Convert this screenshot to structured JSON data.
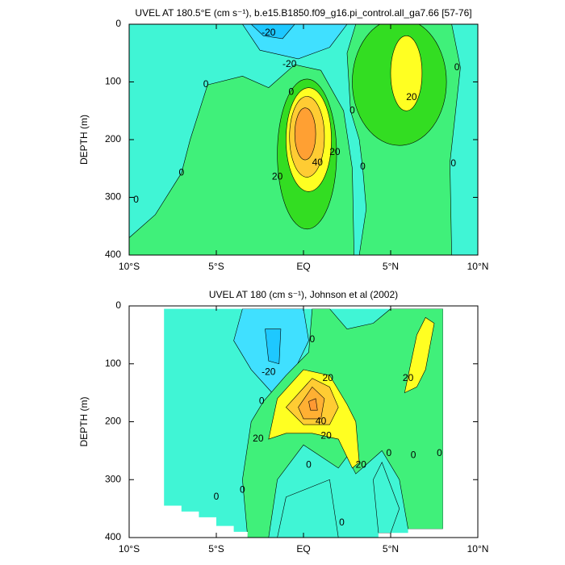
{
  "chart_data": [
    {
      "type": "contour",
      "title": "UVEL AT 180.5°E (cm s⁻¹), b.e15.B1850.f09_g16.pi_control.all_ga7.66 [57-76]",
      "ylabel": "DEPTH (m)",
      "xlim": [
        -10,
        10
      ],
      "ylim": [
        0,
        400
      ],
      "y_inverted": true,
      "xticks": [
        {
          "value": -10,
          "label": "10°S"
        },
        {
          "value": -5,
          "label": "5°S"
        },
        {
          "value": 0,
          "label": "EQ"
        },
        {
          "value": 5,
          "label": "5°N"
        },
        {
          "value": 10,
          "label": "10°N"
        }
      ],
      "yticks": [
        0,
        100,
        200,
        300,
        400
      ],
      "background": {
        "level": 0,
        "color": "#40f07a"
      },
      "regions": [
        {
          "level": -10,
          "color": "#40f5d5",
          "points": [
            [
              -10,
              0
            ],
            [
              3,
              0
            ],
            [
              2.5,
              50
            ],
            [
              2.7,
              150
            ],
            [
              3.2,
              200
            ],
            [
              3.4,
              250
            ],
            [
              3.6,
              320
            ],
            [
              3.2,
              400
            ],
            [
              2.9,
              400
            ],
            [
              2.8,
              250
            ],
            [
              2.3,
              150
            ],
            [
              1,
              80
            ],
            [
              -0.5,
              70
            ],
            [
              -2,
              110
            ],
            [
              -3.5,
              90
            ],
            [
              -5.5,
              105
            ],
            [
              -6.5,
              200
            ],
            [
              -7,
              258
            ],
            [
              -8.5,
              330
            ],
            [
              -10,
              370
            ]
          ]
        },
        {
          "level": -10,
          "color": "#40f5d5",
          "points": [
            [
              8.5,
              0
            ],
            [
              10,
              0
            ],
            [
              10,
              400
            ],
            [
              8.5,
              400
            ],
            [
              8.4,
              240
            ],
            [
              9,
              75
            ]
          ]
        },
        {
          "level": -20,
          "color": "#40e0ff",
          "points": [
            [
              -3.5,
              0
            ],
            [
              2.5,
              0
            ],
            [
              1.5,
              40
            ],
            [
              -0.3,
              60
            ],
            [
              -2.5,
              45
            ]
          ]
        },
        {
          "level": -30,
          "color": "#1ec8ff",
          "points": [
            [
              -3,
              0
            ],
            [
              -0.5,
              0
            ],
            [
              -1.2,
              25
            ],
            [
              -2.3,
              20
            ]
          ]
        },
        {
          "level": 10,
          "color": "#33dd22",
          "center": [
            0.2,
            225
          ],
          "radius": [
            1.7,
            130
          ]
        },
        {
          "level": 20,
          "color": "#ffff22",
          "center": [
            0.3,
            200
          ],
          "radius": [
            1.3,
            90
          ]
        },
        {
          "level": 30,
          "color": "#ffcc33",
          "center": [
            0.2,
            195
          ],
          "radius": [
            1,
            70
          ]
        },
        {
          "level": 40,
          "color": "#ffa033",
          "center": [
            0.1,
            190
          ],
          "radius": [
            0.6,
            45
          ]
        },
        {
          "level": 10,
          "color": "#33dd22",
          "center": [
            5.5,
            100
          ],
          "radius": [
            2.7,
            110
          ]
        },
        {
          "level": 20,
          "color": "#ffff22",
          "center": [
            5.9,
            85
          ],
          "radius": [
            0.9,
            65
          ]
        }
      ],
      "contour_labels": [
        {
          "level": -20,
          "x": -2,
          "y": 15
        },
        {
          "level": -20,
          "x": -0.8,
          "y": 70
        },
        {
          "level": 0,
          "x": -5.6,
          "y": 105
        },
        {
          "level": 0,
          "x": -9.6,
          "y": 305
        },
        {
          "level": 0,
          "x": -7,
          "y": 258
        },
        {
          "level": 0,
          "x": -0.7,
          "y": 118
        },
        {
          "level": 0,
          "x": 2.8,
          "y": 150
        },
        {
          "level": 0,
          "x": 3.4,
          "y": 247
        },
        {
          "level": 0,
          "x": 8.8,
          "y": 75
        },
        {
          "level": 0,
          "x": 8.6,
          "y": 242
        },
        {
          "level": 20,
          "x": 1.8,
          "y": 222
        },
        {
          "level": 40,
          "x": 0.8,
          "y": 240
        },
        {
          "level": 20,
          "x": -1.5,
          "y": 265
        },
        {
          "level": 20,
          "x": 6.2,
          "y": 127
        }
      ]
    },
    {
      "type": "contour",
      "title": "UVEL AT 180 (cm s⁻¹), Johnson et al (2002)",
      "ylabel": "DEPTH (m)",
      "xlim": [
        -10,
        10
      ],
      "ylim": [
        0,
        400
      ],
      "y_inverted": true,
      "xticks": [
        {
          "value": -10,
          "label": "10°S"
        },
        {
          "value": -5,
          "label": "5°S"
        },
        {
          "value": 0,
          "label": "EQ"
        },
        {
          "value": 5,
          "label": "5°N"
        },
        {
          "value": 10,
          "label": "10°N"
        }
      ],
      "yticks": [
        0,
        100,
        200,
        300,
        400
      ],
      "extent": [
        [
          -8,
          5
        ],
        [
          8,
          5
        ],
        [
          8,
          385
        ],
        [
          6,
          385
        ],
        [
          6,
          392
        ],
        [
          4.3,
          392
        ],
        [
          4.3,
          400
        ],
        [
          -3.2,
          400
        ],
        [
          -3.2,
          390
        ],
        [
          -4,
          390
        ],
        [
          -4,
          380
        ],
        [
          -5,
          380
        ],
        [
          -5,
          365
        ],
        [
          -6,
          365
        ],
        [
          -6,
          355
        ],
        [
          -7,
          355
        ],
        [
          -7,
          345
        ],
        [
          -8,
          345
        ]
      ],
      "background": {
        "level": -10,
        "color": "#40f5d5"
      },
      "regions": [
        {
          "level": -20,
          "color": "#40e0ff",
          "points": [
            [
              -3.5,
              5
            ],
            [
              0,
              5
            ],
            [
              0.3,
              60
            ],
            [
              -0.5,
              110
            ],
            [
              -1.8,
              150
            ],
            [
              -3,
              110
            ],
            [
              -4,
              60
            ]
          ]
        },
        {
          "level": -30,
          "color": "#1ec8ff",
          "points": [
            [
              -2.2,
              40
            ],
            [
              -1.3,
              40
            ],
            [
              -1.4,
              100
            ],
            [
              -2,
              95
            ]
          ]
        },
        {
          "level": 10,
          "color": "#40f07a",
          "points": [
            [
              0.5,
              5
            ],
            [
              1.5,
              5
            ],
            [
              2.5,
              40
            ],
            [
              4,
              30
            ],
            [
              5,
              5
            ],
            [
              8,
              5
            ],
            [
              8,
              385
            ],
            [
              6,
              385
            ],
            [
              5.5,
              300
            ],
            [
              4.5,
              250
            ],
            [
              3,
              290
            ],
            [
              2.5,
              260
            ],
            [
              2,
              280
            ],
            [
              0,
              240
            ],
            [
              -1.5,
              300
            ],
            [
              -2,
              400
            ],
            [
              -3.2,
              400
            ],
            [
              -3.5,
              300
            ],
            [
              -3,
              200
            ],
            [
              -2.3,
              165
            ],
            [
              -1,
              120
            ],
            [
              0.3,
              80
            ]
          ]
        },
        {
          "level": -10,
          "color": "#40f5d5",
          "points": [
            [
              -1,
              330
            ],
            [
              1.5,
              300
            ],
            [
              2,
              400
            ],
            [
              -1.5,
              400
            ]
          ]
        },
        {
          "level": -10,
          "color": "#40f5d5",
          "points": [
            [
              4.5,
              270
            ],
            [
              5.5,
              350
            ],
            [
              5,
              392
            ],
            [
              4.3,
              392
            ],
            [
              4,
              300
            ]
          ]
        },
        {
          "level": 20,
          "color": "#ffff22",
          "points": [
            [
              -1.5,
              160
            ],
            [
              0,
              110
            ],
            [
              1.5,
              120
            ],
            [
              2.5,
              170
            ],
            [
              3,
              200
            ],
            [
              3.2,
              270
            ],
            [
              2.8,
              280
            ],
            [
              2,
              230
            ],
            [
              0.5,
              220
            ],
            [
              -1,
              220
            ],
            [
              -2,
              230
            ]
          ]
        },
        {
          "level": 20,
          "color": "#ffff22",
          "points": [
            [
              5.8,
              150
            ],
            [
              6.5,
              50
            ],
            [
              7,
              20
            ],
            [
              7.5,
              30
            ],
            [
              7,
              110
            ],
            [
              6.5,
              140
            ]
          ]
        },
        {
          "level": 30,
          "color": "#ffcc33",
          "points": [
            [
              -1,
              175
            ],
            [
              0.5,
              125
            ],
            [
              1.5,
              140
            ],
            [
              2,
              175
            ],
            [
              1.5,
              205
            ],
            [
              0,
              205
            ]
          ]
        },
        {
          "level": 40,
          "color": "#ffb033",
          "points": [
            [
              -0.3,
              175
            ],
            [
              0.5,
              140
            ],
            [
              1.2,
              160
            ],
            [
              1,
              195
            ],
            [
              0,
              195
            ]
          ]
        },
        {
          "level": 50,
          "color": "#ff9933",
          "points": [
            [
              0.3,
              165
            ],
            [
              0.7,
              160
            ],
            [
              0.8,
              180
            ],
            [
              0.4,
              180
            ]
          ]
        }
      ],
      "contour_labels": [
        {
          "level": -20,
          "x": -2,
          "y": 115
        },
        {
          "level": 0,
          "x": -2.4,
          "y": 165
        },
        {
          "level": 20,
          "x": 1.4,
          "y": 125
        },
        {
          "level": 20,
          "x": 6,
          "y": 125
        },
        {
          "level": 40,
          "x": 1,
          "y": 200
        },
        {
          "level": 20,
          "x": 1.3,
          "y": 225
        },
        {
          "level": 20,
          "x": -2.6,
          "y": 230
        },
        {
          "level": 0,
          "x": 0.5,
          "y": 58
        },
        {
          "level": 0,
          "x": 0.3,
          "y": 275
        },
        {
          "level": 20,
          "x": 3.3,
          "y": 275
        },
        {
          "level": 0,
          "x": 4.9,
          "y": 255
        },
        {
          "level": 0,
          "x": 6.3,
          "y": 258
        },
        {
          "level": 0,
          "x": 7.8,
          "y": 255
        },
        {
          "level": 0,
          "x": -5,
          "y": 330
        },
        {
          "level": 0,
          "x": -3.5,
          "y": 318
        },
        {
          "level": 0,
          "x": 2.2,
          "y": 375
        }
      ]
    }
  ]
}
